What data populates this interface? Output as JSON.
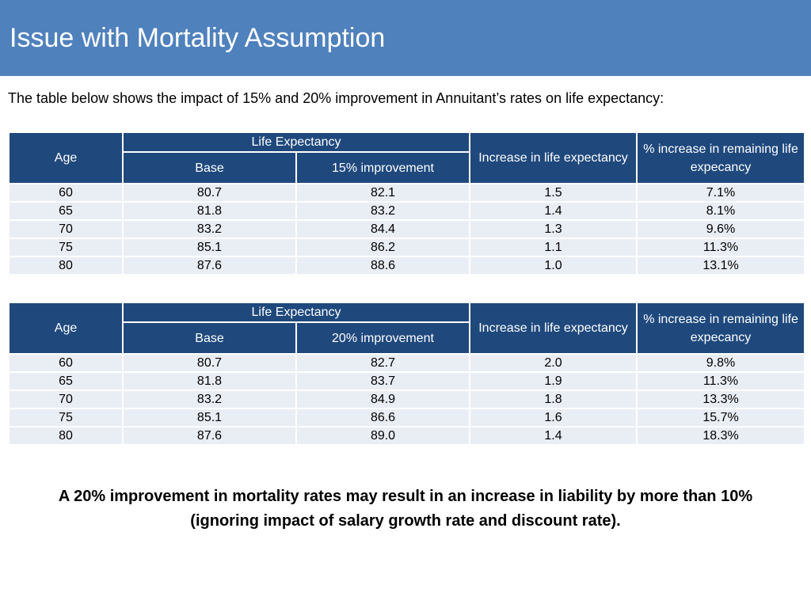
{
  "title": "Issue with Mortality Assumption",
  "intro": "The table below shows the impact of 15% and 20% improvement in Annuitant’s rates on life expectancy:",
  "tables": [
    {
      "headers": {
        "age": "Age",
        "life_expectancy": "Life Expectancy",
        "base": "Base",
        "improvement": "15% improvement",
        "increase": "Increase in life expectancy",
        "pct_increase": "% increase in remaining life expecancy"
      },
      "rows": [
        [
          "60",
          "80.7",
          "82.1",
          "1.5",
          "7.1%"
        ],
        [
          "65",
          "81.8",
          "83.2",
          "1.4",
          "8.1%"
        ],
        [
          "70",
          "83.2",
          "84.4",
          "1.3",
          "9.6%"
        ],
        [
          "75",
          "85.1",
          "86.2",
          "1.1",
          "11.3%"
        ],
        [
          "80",
          "87.6",
          "88.6",
          "1.0",
          "13.1%"
        ]
      ]
    },
    {
      "headers": {
        "age": "Age",
        "life_expectancy": "Life Expectancy",
        "base": "Base",
        "improvement": "20% improvement",
        "increase": "Increase in life expectancy",
        "pct_increase": "% increase in remaining life expecancy"
      },
      "rows": [
        [
          "60",
          "80.7",
          "82.7",
          "2.0",
          "9.8%"
        ],
        [
          "65",
          "81.8",
          "83.7",
          "1.9",
          "11.3%"
        ],
        [
          "70",
          "83.2",
          "84.9",
          "1.8",
          "13.3%"
        ],
        [
          "75",
          "85.1",
          "86.6",
          "1.6",
          "15.7%"
        ],
        [
          "80",
          "87.6",
          "89.0",
          "1.4",
          "18.3%"
        ]
      ]
    }
  ],
  "conclusion": {
    "line1": "A 20% improvement in mortality rates may result in an increase in liability by more than 10%",
    "line2": "(ignoring impact of salary growth rate and discount rate)."
  },
  "colors": {
    "title_bar": "#4f81bd",
    "header_fill": "#1f497d",
    "row_fill": "#e9edf4"
  }
}
